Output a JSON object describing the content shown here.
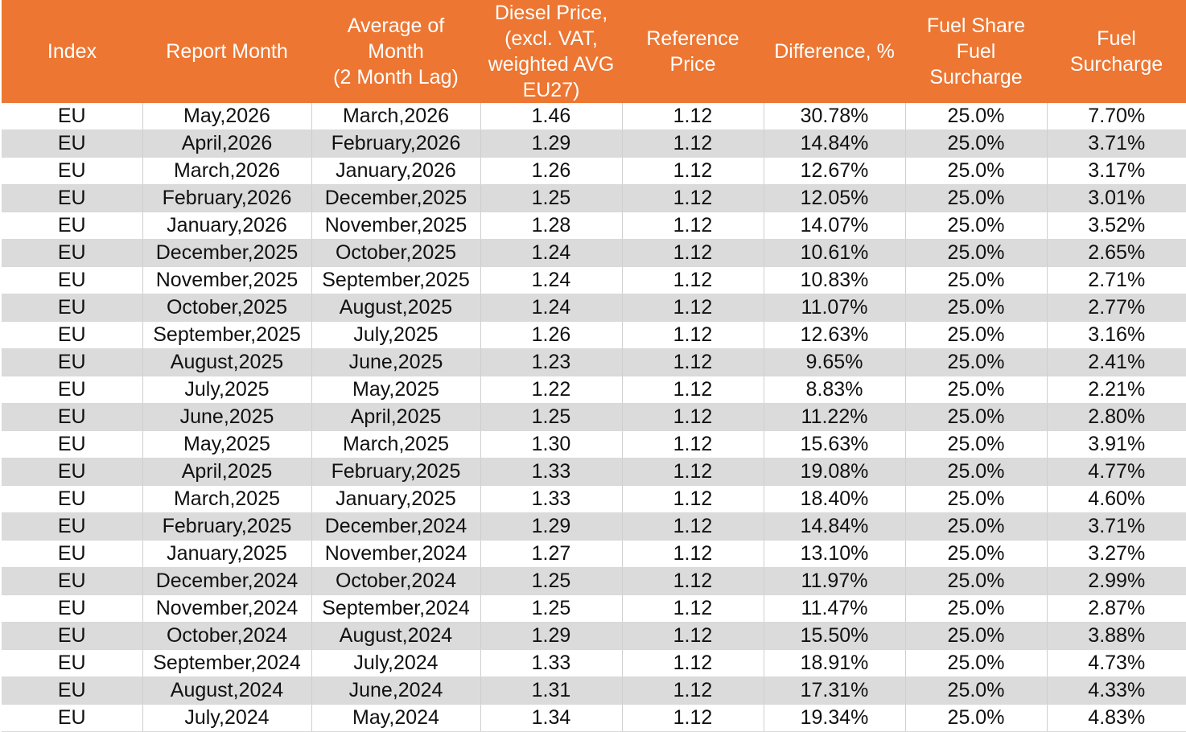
{
  "table": {
    "columns": [
      [
        "Index"
      ],
      [
        "Report Month"
      ],
      [
        "Average of",
        "Month",
        "(2 Month Lag)"
      ],
      [
        "Diesel Price,",
        "(excl. VAT,",
        "weighted AVG",
        "EU27)"
      ],
      [
        "Reference",
        "Price"
      ],
      [
        "Difference, %"
      ],
      [
        "Fuel Share",
        "Fuel",
        "Surcharge"
      ],
      [
        "Fuel",
        "Surcharge"
      ]
    ],
    "rows": [
      [
        "EU",
        "May,2026",
        "March,2026",
        "1.46",
        "1.12",
        "30.78%",
        "25.0%",
        "7.70%"
      ],
      [
        "EU",
        "April,2026",
        "February,2026",
        "1.29",
        "1.12",
        "14.84%",
        "25.0%",
        "3.71%"
      ],
      [
        "EU",
        "March,2026",
        "January,2026",
        "1.26",
        "1.12",
        "12.67%",
        "25.0%",
        "3.17%"
      ],
      [
        "EU",
        "February,2026",
        "December,2025",
        "1.25",
        "1.12",
        "12.05%",
        "25.0%",
        "3.01%"
      ],
      [
        "EU",
        "January,2026",
        "November,2025",
        "1.28",
        "1.12",
        "14.07%",
        "25.0%",
        "3.52%"
      ],
      [
        "EU",
        "December,2025",
        "October,2025",
        "1.24",
        "1.12",
        "10.61%",
        "25.0%",
        "2.65%"
      ],
      [
        "EU",
        "November,2025",
        "September,2025",
        "1.24",
        "1.12",
        "10.83%",
        "25.0%",
        "2.71%"
      ],
      [
        "EU",
        "October,2025",
        "August,2025",
        "1.24",
        "1.12",
        "11.07%",
        "25.0%",
        "2.77%"
      ],
      [
        "EU",
        "September,2025",
        "July,2025",
        "1.26",
        "1.12",
        "12.63%",
        "25.0%",
        "3.16%"
      ],
      [
        "EU",
        "August,2025",
        "June,2025",
        "1.23",
        "1.12",
        "9.65%",
        "25.0%",
        "2.41%"
      ],
      [
        "EU",
        "July,2025",
        "May,2025",
        "1.22",
        "1.12",
        "8.83%",
        "25.0%",
        "2.21%"
      ],
      [
        "EU",
        "June,2025",
        "April,2025",
        "1.25",
        "1.12",
        "11.22%",
        "25.0%",
        "2.80%"
      ],
      [
        "EU",
        "May,2025",
        "March,2025",
        "1.30",
        "1.12",
        "15.63%",
        "25.0%",
        "3.91%"
      ],
      [
        "EU",
        "April,2025",
        "February,2025",
        "1.33",
        "1.12",
        "19.08%",
        "25.0%",
        "4.77%"
      ],
      [
        "EU",
        "March,2025",
        "January,2025",
        "1.33",
        "1.12",
        "18.40%",
        "25.0%",
        "4.60%"
      ],
      [
        "EU",
        "February,2025",
        "December,2024",
        "1.29",
        "1.12",
        "14.84%",
        "25.0%",
        "3.71%"
      ],
      [
        "EU",
        "January,2025",
        "November,2024",
        "1.27",
        "1.12",
        "13.10%",
        "25.0%",
        "3.27%"
      ],
      [
        "EU",
        "December,2024",
        "October,2024",
        "1.25",
        "1.12",
        "11.97%",
        "25.0%",
        "2.99%"
      ],
      [
        "EU",
        "November,2024",
        "September,2024",
        "1.25",
        "1.12",
        "11.47%",
        "25.0%",
        "2.87%"
      ],
      [
        "EU",
        "October,2024",
        "August,2024",
        "1.29",
        "1.12",
        "15.50%",
        "25.0%",
        "3.88%"
      ],
      [
        "EU",
        "September,2024",
        "July,2024",
        "1.33",
        "1.12",
        "18.91%",
        "25.0%",
        "4.73%"
      ],
      [
        "EU",
        "August,2024",
        "June,2024",
        "1.31",
        "1.12",
        "17.31%",
        "25.0%",
        "4.33%"
      ],
      [
        "EU",
        "July,2024",
        "May,2024",
        "1.34",
        "1.12",
        "19.34%",
        "25.0%",
        "4.83%"
      ]
    ]
  },
  "colors": {
    "header_bg": "#ec7632",
    "header_text": "#ffffff",
    "row_alt_bg": "#dbdbdb",
    "row_bg": "#ffffff"
  }
}
